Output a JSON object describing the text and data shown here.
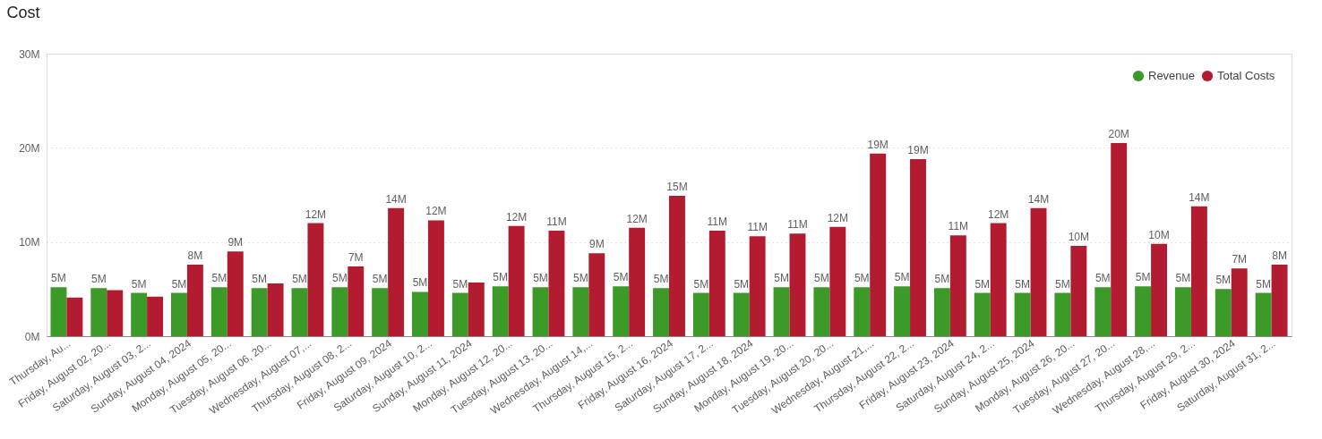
{
  "chart_data": {
    "type": "bar",
    "title": "Cost",
    "categories": [
      "Thursday, Au...",
      "Friday, August 02, 20...",
      "Saturday, August 03, 2...",
      "Sunday, August 04, 2024",
      "Monday, August 05, 20...",
      "Tuesday, August 06, 20...",
      "Wednesday, August 07,...",
      "Thursday, August 08, 2...",
      "Friday, August 09, 2024",
      "Saturday, August 10, 2...",
      "Sunday, August 11, 2024",
      "Monday, August 12, 20...",
      "Tuesday, August 13, 20...",
      "Wednesday, August 14,...",
      "Thursday, August 15, 2...",
      "Friday, August 16, 2024",
      "Saturday, August 17, 2...",
      "Sunday, August 18, 2024",
      "Monday, August 19, 20...",
      "Tuesday, August 20, 20...",
      "Wednesday, August 21,...",
      "Thursday, August 22, 2...",
      "Friday, August 23, 2024",
      "Saturday, August 24, 2...",
      "Sunday, August 25, 2024",
      "Monday, August 26, 20...",
      "Tuesday, August 27, 20...",
      "Wednesday, August 28,...",
      "Thursday, August 29, 2...",
      "Friday, August 30, 2024",
      "Saturday, August 31, 2..."
    ],
    "series": [
      {
        "name": "Revenue",
        "color": "#3c9a28",
        "values": [
          5.2,
          5.1,
          4.6,
          4.6,
          5.2,
          5.1,
          5.1,
          5.2,
          5.1,
          4.7,
          4.6,
          5.3,
          5.2,
          5.2,
          5.3,
          5.1,
          4.6,
          4.6,
          5.2,
          5.2,
          5.2,
          5.3,
          5.1,
          4.6,
          4.6,
          4.6,
          5.2,
          5.3,
          5.2,
          5.0,
          4.6
        ],
        "value_labels": [
          "5M",
          "5M",
          "5M",
          "5M",
          "5M",
          "5M",
          "5M",
          "5M",
          "5M",
          "5M",
          "5M",
          "5M",
          "5M",
          "5M",
          "5M",
          "5M",
          "5M",
          "5M",
          "5M",
          "5M",
          "5M",
          "5M",
          "5M",
          "5M",
          "5M",
          "5M",
          "5M",
          "5M",
          "5M",
          "5M",
          "5M"
        ]
      },
      {
        "name": "Total Costs",
        "color": "#b31b30",
        "values": [
          4.1,
          4.9,
          4.2,
          7.6,
          9.0,
          5.6,
          12.0,
          7.4,
          13.6,
          12.3,
          5.7,
          11.7,
          11.2,
          8.8,
          11.5,
          14.9,
          11.2,
          10.6,
          10.9,
          11.6,
          19.4,
          18.8,
          10.7,
          12.0,
          13.6,
          9.6,
          20.5,
          9.8,
          13.8,
          7.2,
          7.6
        ],
        "value_labels": [
          null,
          null,
          null,
          "8M",
          "9M",
          null,
          "12M",
          "7M",
          "14M",
          "12M",
          null,
          "12M",
          "11M",
          "9M",
          "12M",
          "15M",
          "11M",
          "11M",
          "11M",
          "12M",
          "19M",
          "19M",
          "11M",
          "12M",
          "14M",
          "10M",
          "20M",
          "10M",
          "14M",
          "7M",
          "8M"
        ]
      }
    ],
    "ylim": [
      0,
      30
    ],
    "yticks": [
      {
        "value": 0,
        "label": "0M"
      },
      {
        "value": 10,
        "label": "10M"
      },
      {
        "value": 20,
        "label": "20M"
      },
      {
        "value": 30,
        "label": "30M"
      }
    ],
    "grid": "y",
    "legend": "top right",
    "marker": "circle"
  }
}
